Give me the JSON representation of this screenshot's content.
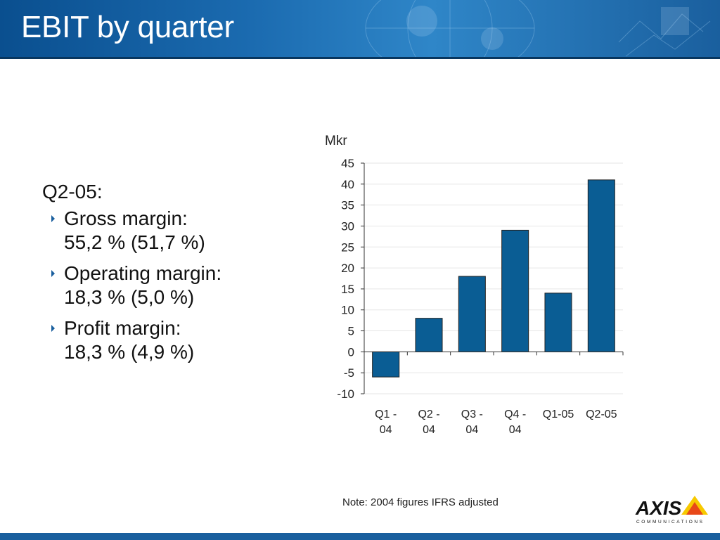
{
  "slide": {
    "title": "EBIT by quarter",
    "note": "Note: 2004 figures IFRS adjusted"
  },
  "bullets": {
    "intro": "Q2-05:",
    "items": [
      {
        "line1": "Gross margin:",
        "line2": "55,2 % (51,7 %)"
      },
      {
        "line1": "Operating margin:",
        "line2": "18,3 % (5,0 %)"
      },
      {
        "line1": "Profit margin:",
        "line2": "18,3 % (4,9 %)"
      }
    ]
  },
  "logo": {
    "wordmark": "AXIS",
    "tagline": "COMMUNICATIONS"
  },
  "chart_data": {
    "type": "bar",
    "unit_label": "Mkr",
    "categories": [
      [
        "Q1 -",
        "04"
      ],
      [
        "Q2 -",
        "04"
      ],
      [
        "Q3 -",
        "04"
      ],
      [
        "Q4 -",
        "04"
      ],
      [
        "Q1-05"
      ],
      [
        "Q2-05"
      ]
    ],
    "values": [
      -6,
      8,
      18,
      29,
      14,
      41
    ],
    "ylim": [
      -10,
      45
    ],
    "yticks": [
      45,
      40,
      35,
      30,
      25,
      20,
      15,
      10,
      5,
      0,
      -5,
      -10
    ],
    "bar_color": "#0a5d94",
    "grid": true,
    "legend": false
  }
}
